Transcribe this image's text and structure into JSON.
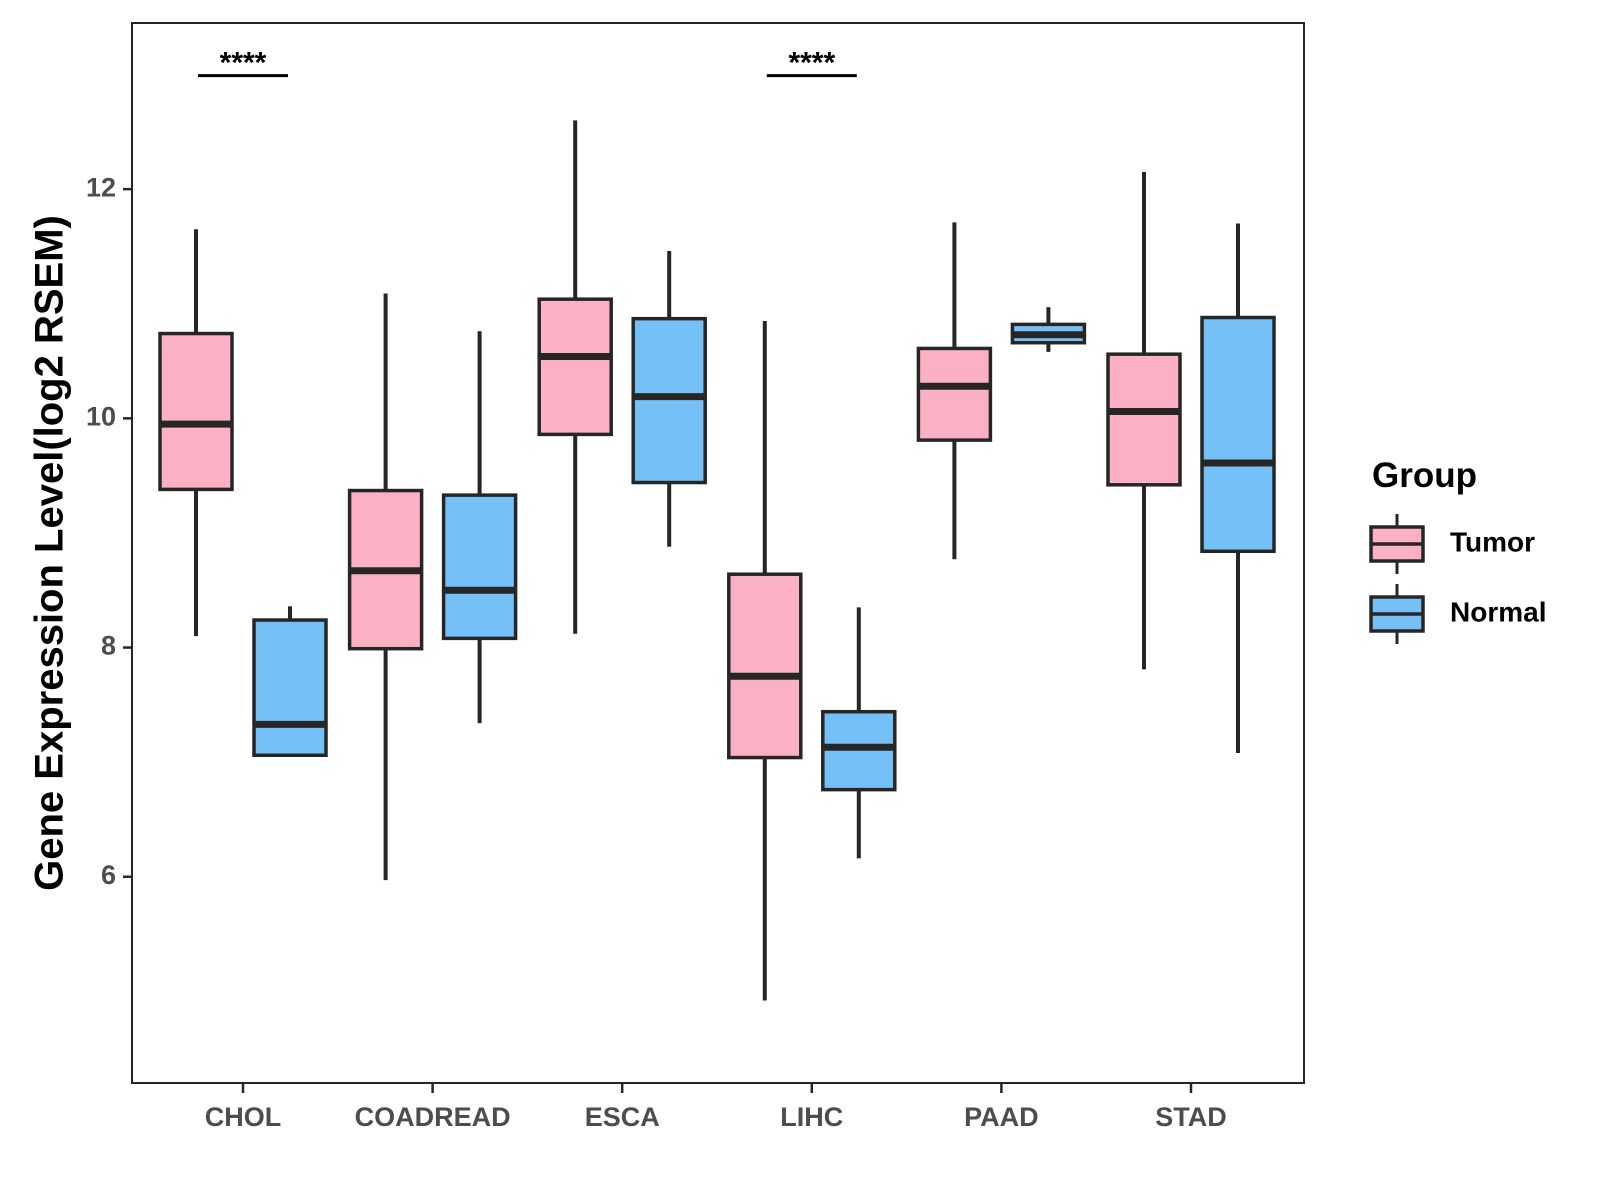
{
  "colors": {
    "tumor": "#FBB1C3",
    "normal": "#75C1F7",
    "stroke": "#262626",
    "panel_border": "#262626",
    "axis_text": "#4d4d4d"
  },
  "chart_data": {
    "type": "boxplot",
    "title": "",
    "xlabel": "",
    "ylabel": "Gene Expression Level(log2 RSEM)",
    "ylim": [
      4.2,
      13.45
    ],
    "yticks": [
      6,
      8,
      10,
      12
    ],
    "ytick_labels": [
      "6",
      "8",
      "10",
      "12"
    ],
    "categories": [
      "CHOL",
      "COADREAD",
      "ESCA",
      "LIHC",
      "PAAD",
      "STAD"
    ],
    "legend": {
      "title": "Group",
      "position": "right",
      "entries": [
        {
          "name": "Tumor",
          "color": "#FBB1C3"
        },
        {
          "name": "Normal",
          "color": "#75C1F7"
        }
      ]
    },
    "series": [
      {
        "name": "Tumor",
        "color": "#FBB1C3",
        "boxes": [
          {
            "category": "CHOL",
            "lower_whisker": 8.1,
            "q1": 9.38,
            "median": 9.95,
            "q3": 10.74,
            "upper_whisker": 11.65
          },
          {
            "category": "COADREAD",
            "lower_whisker": 5.97,
            "q1": 7.99,
            "median": 8.67,
            "q3": 9.37,
            "upper_whisker": 11.09
          },
          {
            "category": "ESCA",
            "lower_whisker": 8.12,
            "q1": 9.86,
            "median": 10.54,
            "q3": 11.04,
            "upper_whisker": 12.6
          },
          {
            "category": "LIHC",
            "lower_whisker": 4.92,
            "q1": 7.04,
            "median": 7.75,
            "q3": 8.64,
            "upper_whisker": 10.85
          },
          {
            "category": "PAAD",
            "lower_whisker": 8.77,
            "q1": 9.81,
            "median": 10.28,
            "q3": 10.61,
            "upper_whisker": 11.71
          },
          {
            "category": "STAD",
            "lower_whisker": 7.81,
            "q1": 9.42,
            "median": 10.06,
            "q3": 10.56,
            "upper_whisker": 12.15
          }
        ]
      },
      {
        "name": "Normal",
        "color": "#75C1F7",
        "boxes": [
          {
            "category": "CHOL",
            "lower_whisker": 7.06,
            "q1": 7.06,
            "median": 7.33,
            "q3": 8.24,
            "upper_whisker": 8.36
          },
          {
            "category": "COADREAD",
            "lower_whisker": 7.34,
            "q1": 8.08,
            "median": 8.5,
            "q3": 9.33,
            "upper_whisker": 10.76
          },
          {
            "category": "ESCA",
            "lower_whisker": 8.88,
            "q1": 9.44,
            "median": 10.19,
            "q3": 10.87,
            "upper_whisker": 11.46
          },
          {
            "category": "LIHC",
            "lower_whisker": 6.16,
            "q1": 6.76,
            "median": 7.13,
            "q3": 7.44,
            "upper_whisker": 8.35
          },
          {
            "category": "PAAD",
            "lower_whisker": 10.58,
            "q1": 10.66,
            "median": 10.73,
            "q3": 10.82,
            "upper_whisker": 10.97
          },
          {
            "category": "STAD",
            "lower_whisker": 7.08,
            "q1": 8.84,
            "median": 9.61,
            "q3": 10.88,
            "upper_whisker": 11.7
          }
        ]
      }
    ],
    "annotations": [
      {
        "category": "CHOL",
        "label": "****",
        "y": 13.0
      },
      {
        "category": "LIHC",
        "label": "****",
        "y": 13.0
      }
    ]
  }
}
